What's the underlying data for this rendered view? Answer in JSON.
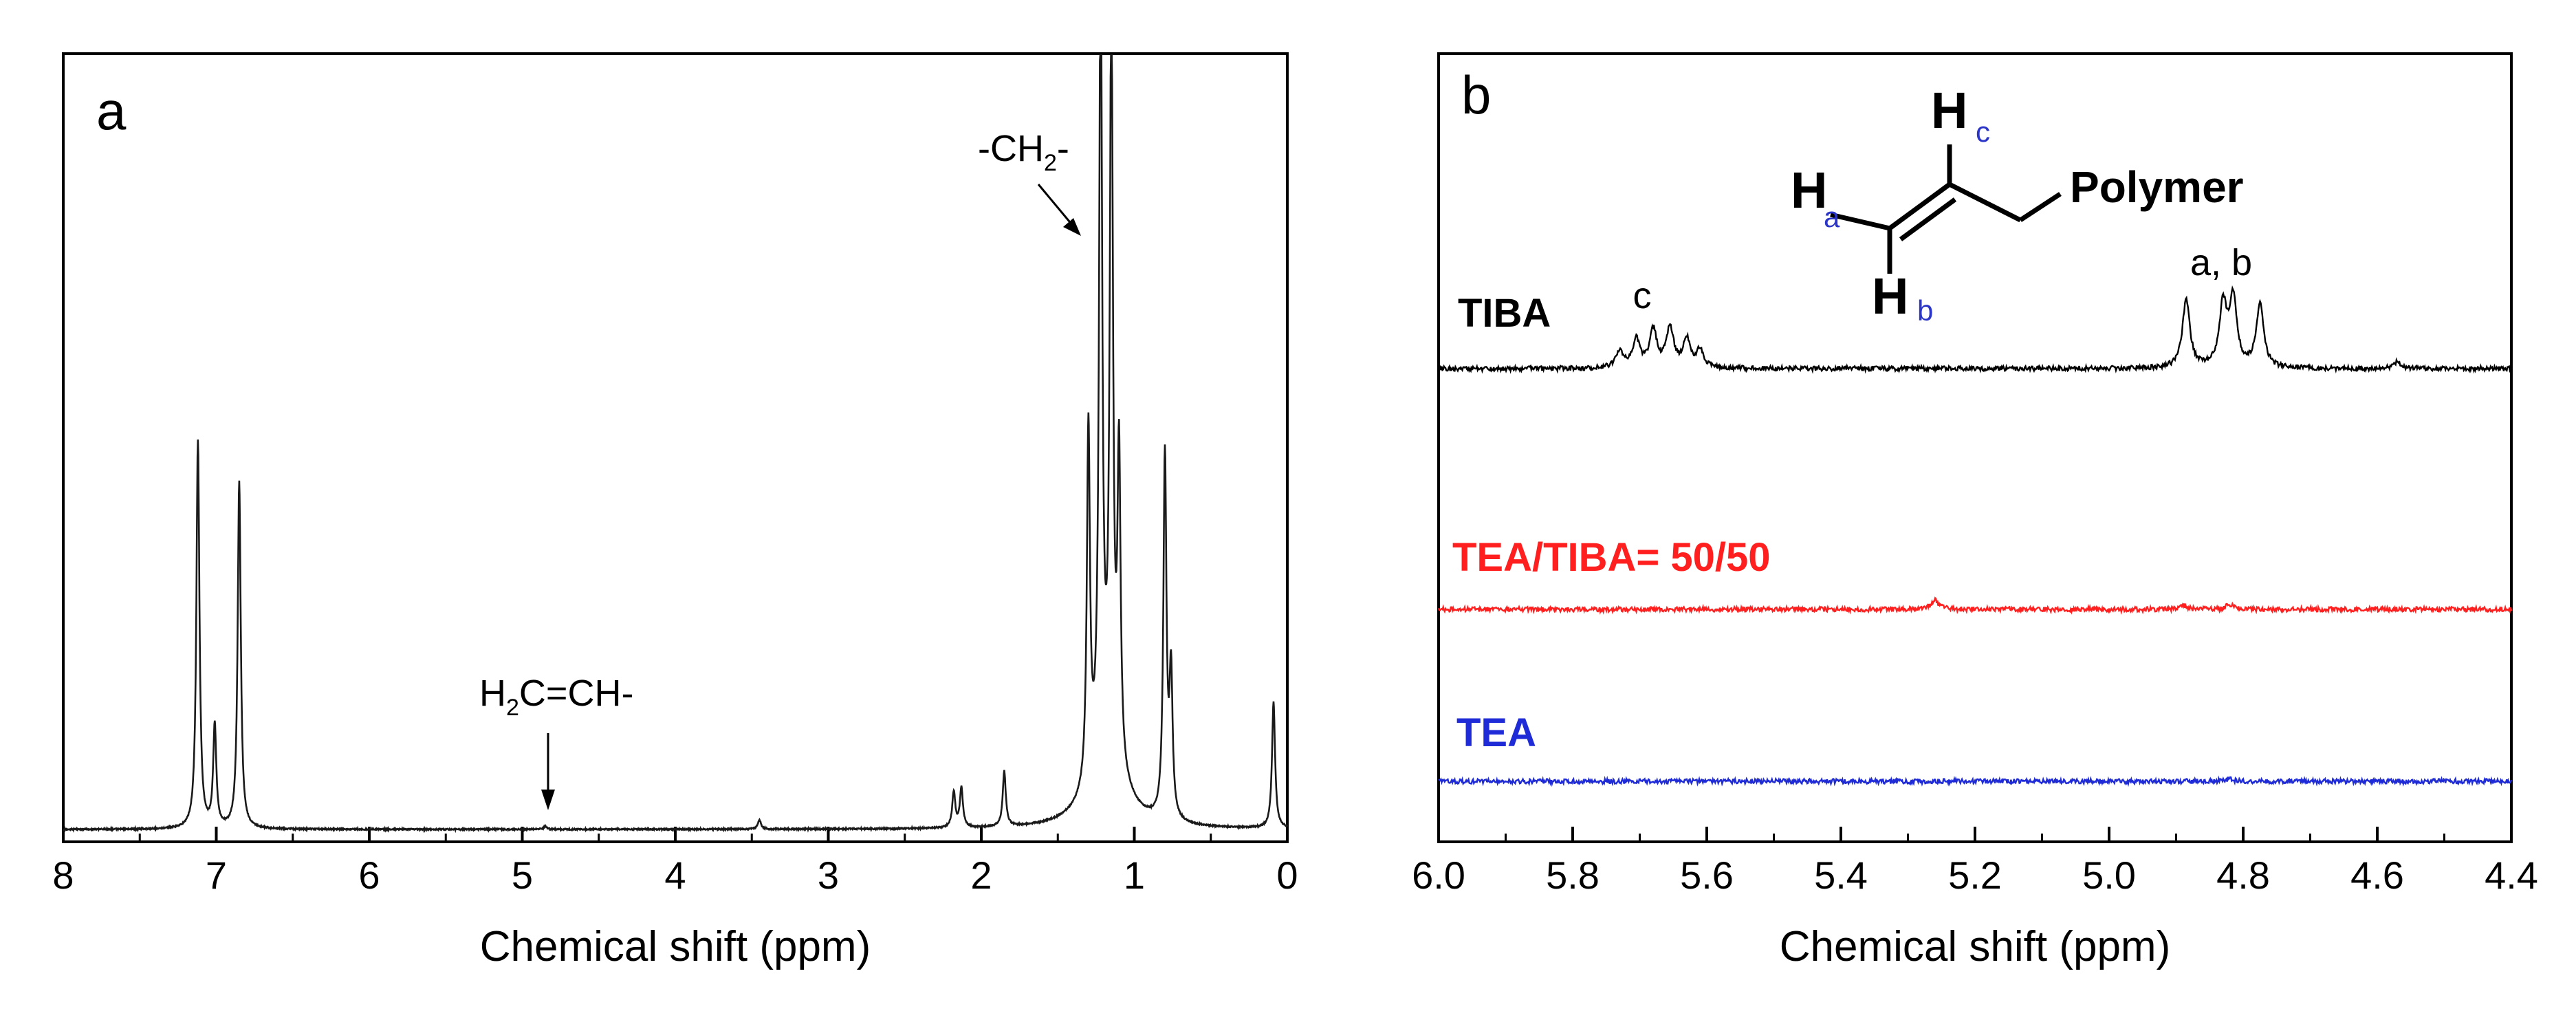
{
  "chart_data": [
    {
      "type": "line",
      "panel_label": "a",
      "xlabel": "Chemical shift (ppm)",
      "xlim": [
        8,
        0
      ],
      "x_reversed": true,
      "xticks": [
        "8",
        "7",
        "6",
        "5",
        "4",
        "3",
        "2",
        "1",
        "0"
      ],
      "ylabel": "",
      "peaks": [
        {
          "ppm": 7.12,
          "intensity": 0.49
        },
        {
          "ppm": 7.01,
          "intensity": 0.13
        },
        {
          "ppm": 6.85,
          "intensity": 0.44
        },
        {
          "ppm": 4.85,
          "intensity": 0.004
        },
        {
          "ppm": 3.45,
          "intensity": 0.012
        },
        {
          "ppm": 2.18,
          "intensity": 0.045
        },
        {
          "ppm": 2.13,
          "intensity": 0.05
        },
        {
          "ppm": 1.85,
          "intensity": 0.07
        },
        {
          "ppm": 1.3,
          "intensity": 0.45
        },
        {
          "ppm": 1.22,
          "intensity": 1.0
        },
        {
          "ppm": 1.15,
          "intensity": 0.95
        },
        {
          "ppm": 1.1,
          "intensity": 0.39
        },
        {
          "ppm": 0.8,
          "intensity": 0.46
        },
        {
          "ppm": 0.76,
          "intensity": 0.18
        },
        {
          "ppm": 0.09,
          "intensity": 0.16
        }
      ],
      "annotations": [
        {
          "text_main": "-CH",
          "sub": "2",
          "text_tail": "-",
          "arrow_to_ppm": 1.25
        },
        {
          "text_main": "H",
          "sub": "2",
          "text_tail": "C=CH-",
          "arrow_to_ppm": 4.85
        }
      ]
    },
    {
      "type": "line",
      "panel_label": "b",
      "xlabel": "Chemical shift (ppm)",
      "xlim": [
        6.0,
        4.4
      ],
      "x_reversed": true,
      "xticks": [
        "6.0",
        "5.8",
        "5.6",
        "5.4",
        "5.2",
        "5.0",
        "4.8",
        "4.6",
        "4.4"
      ],
      "series": [
        {
          "name": "TIBA",
          "color": "#000000",
          "peaks": [
            {
              "ppm": 5.73,
              "intensity": 0.25
            },
            {
              "ppm": 5.705,
              "intensity": 0.4
            },
            {
              "ppm": 5.68,
              "intensity": 0.55
            },
            {
              "ppm": 5.655,
              "intensity": 0.58
            },
            {
              "ppm": 5.63,
              "intensity": 0.42
            },
            {
              "ppm": 5.61,
              "intensity": 0.25
            },
            {
              "ppm": 4.885,
              "intensity": 1.0
            },
            {
              "ppm": 4.83,
              "intensity": 0.9
            },
            {
              "ppm": 4.815,
              "intensity": 1.0
            },
            {
              "ppm": 4.775,
              "intensity": 0.92
            },
            {
              "ppm": 4.57,
              "intensity": 0.1
            }
          ]
        },
        {
          "name": "TEA/TIBA= 50/50",
          "color": "#ff1f1f",
          "peaks": [
            {
              "ppm": 5.26,
              "intensity": 0.22
            },
            {
              "ppm": 4.89,
              "intensity": 0.1
            },
            {
              "ppm": 4.82,
              "intensity": 0.12
            }
          ]
        },
        {
          "name": "TEA",
          "color": "#1f2bd6",
          "peaks": [
            {
              "ppm": 4.82,
              "intensity": 0.06
            }
          ]
        }
      ],
      "annotations": [
        {
          "text": "c",
          "ppm": 5.67
        },
        {
          "text": "a, b",
          "ppm": 4.83
        }
      ],
      "structure": {
        "h_label": "H",
        "h_a_sub": "a",
        "h_b_sub": "b",
        "h_c_sub": "c",
        "group": "Polymer"
      }
    }
  ]
}
